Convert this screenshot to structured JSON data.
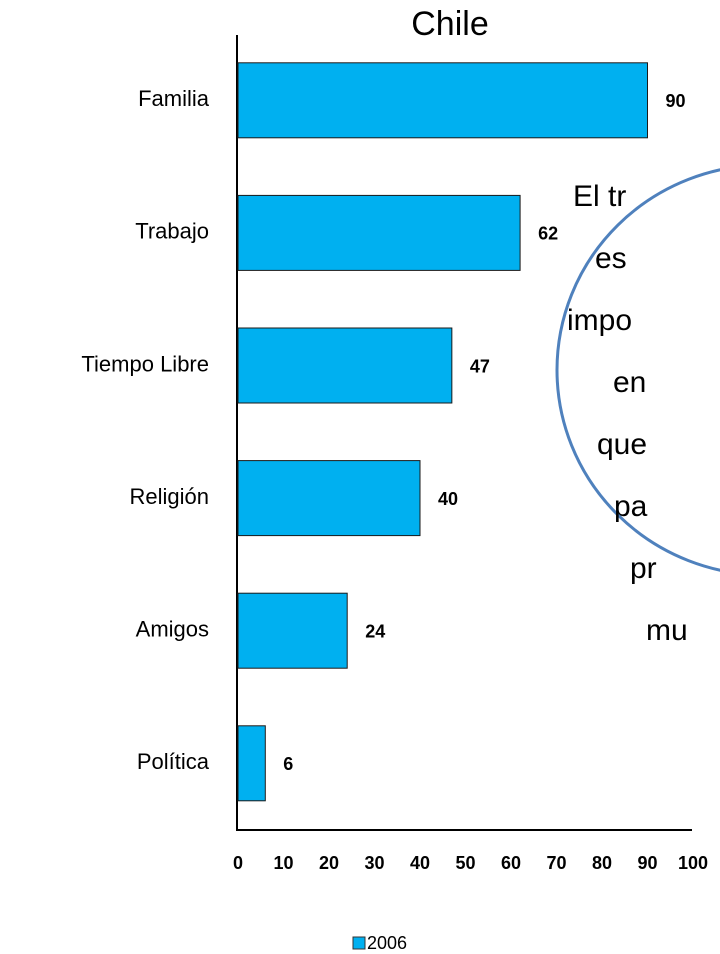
{
  "chart_data": {
    "type": "bar",
    "orientation": "horizontal",
    "title": "Chile",
    "categories": [
      "Familia",
      "Trabajo",
      "Tiempo Libre",
      "Religión",
      "Amigos",
      "Política"
    ],
    "series": [
      {
        "name": "2006",
        "color": "#00b0f0",
        "values": [
          90,
          62,
          47,
          40,
          24,
          6
        ]
      }
    ],
    "xlim": [
      0,
      100
    ],
    "xticks": [
      0,
      10,
      20,
      30,
      40,
      50,
      60,
      70,
      80,
      90,
      100
    ],
    "legend": "bottom",
    "annotation": [
      "El tr",
      "es",
      "impo",
      "en",
      "que",
      "pa",
      "pr",
      "mu"
    ]
  }
}
